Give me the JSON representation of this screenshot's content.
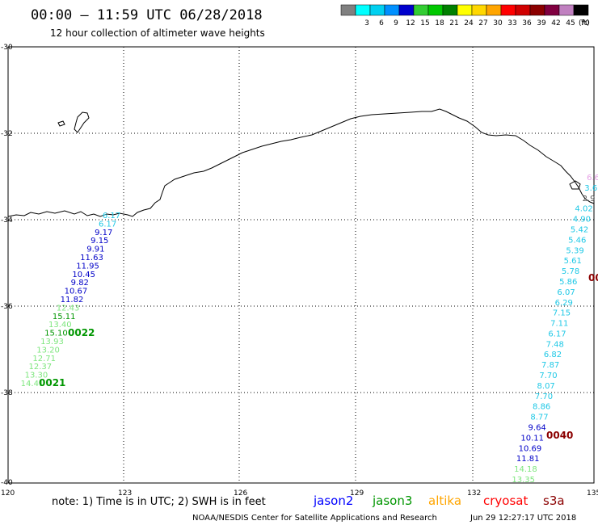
{
  "header": {
    "title": "00:00 – 11:59 UTC 06/28/2018",
    "subtitle": "12 hour collection of altimeter wave heights"
  },
  "color_scale": {
    "unit": "(ft)",
    "bins": [
      {
        "label": "",
        "color": "#808080"
      },
      {
        "label": "3",
        "color": "#00ffff"
      },
      {
        "label": "6",
        "color": "#00d0f0"
      },
      {
        "label": "9",
        "color": "#0090ff"
      },
      {
        "label": "12",
        "color": "#0000cd"
      },
      {
        "label": "15",
        "color": "#32cd32"
      },
      {
        "label": "18",
        "color": "#00c800"
      },
      {
        "label": "21",
        "color": "#008000"
      },
      {
        "label": "24",
        "color": "#ffff00"
      },
      {
        "label": "27",
        "color": "#ffd700"
      },
      {
        "label": "30",
        "color": "#ffa500"
      },
      {
        "label": "33",
        "color": "#ff0000"
      },
      {
        "label": "36",
        "color": "#d00000"
      },
      {
        "label": "39",
        "color": "#8b0000"
      },
      {
        "label": "42",
        "color": "#800040"
      },
      {
        "label": "45",
        "color": "#c080c0"
      },
      {
        "label": "70",
        "color": "#000000"
      }
    ]
  },
  "axes": {
    "lon_ticks": [
      "120",
      "123",
      "126",
      "129",
      "132",
      "135"
    ],
    "lat_ticks": [
      "-30",
      "-32",
      "-34",
      "-36",
      "-38",
      "-40"
    ]
  },
  "tracks": {
    "west": [
      {
        "text": "6.17",
        "color": "#1ec8e6"
      },
      {
        "text": "6.17",
        "color": "#1ec8e6"
      },
      {
        "text": "9.17",
        "color": "#0000c8"
      },
      {
        "text": "9.15",
        "color": "#0000c8"
      },
      {
        "text": "9.91",
        "color": "#0000c8"
      },
      {
        "text": "11.63",
        "color": "#0000c8"
      },
      {
        "text": "11.95",
        "color": "#0000c8"
      },
      {
        "text": "10.45",
        "color": "#0000c8"
      },
      {
        "text": "9.82",
        "color": "#0000c8"
      },
      {
        "text": "10.67",
        "color": "#0000c8"
      },
      {
        "text": "11.82",
        "color": "#0000c8"
      },
      {
        "text": "12.43",
        "color": "#7ee67e"
      },
      {
        "text": "15.11",
        "color": "#009600"
      },
      {
        "text": "13.40",
        "color": "#7ee67e"
      },
      {
        "text": "15.10",
        "color": "#009600"
      },
      {
        "text": "13.93",
        "color": "#7ee67e"
      },
      {
        "text": "13.20",
        "color": "#7ee67e"
      },
      {
        "text": "12.71",
        "color": "#7ee67e"
      },
      {
        "text": "12.37",
        "color": "#7ee67e"
      },
      {
        "text": "13.30",
        "color": "#7ee67e"
      },
      {
        "text": "14.41",
        "color": "#7ee67e"
      }
    ],
    "east": [
      {
        "text": "6.6",
        "color": "#e6a0e6"
      },
      {
        "text": "3.6",
        "color": "#1ec8e6"
      },
      {
        "text": "2.9",
        "color": "#555555"
      },
      {
        "text": "4.02",
        "color": "#1ec8e6"
      },
      {
        "text": "4.90",
        "color": "#1ec8e6"
      },
      {
        "text": "5.42",
        "color": "#1ec8e6"
      },
      {
        "text": "5.46",
        "color": "#1ec8e6"
      },
      {
        "text": "5.39",
        "color": "#1ec8e6"
      },
      {
        "text": "5.61",
        "color": "#1ec8e6"
      },
      {
        "text": "5.78",
        "color": "#1ec8e6"
      },
      {
        "text": "5.86",
        "color": "#1ec8e6"
      },
      {
        "text": "6.07",
        "color": "#1ec8e6"
      },
      {
        "text": "6.29",
        "color": "#1ec8e6"
      },
      {
        "text": "7.15",
        "color": "#1ec8e6"
      },
      {
        "text": "7.11",
        "color": "#1ec8e6"
      },
      {
        "text": "6.17",
        "color": "#1ec8e6"
      },
      {
        "text": "7.48",
        "color": "#1ec8e6"
      },
      {
        "text": "6.82",
        "color": "#1ec8e6"
      },
      {
        "text": "7.87",
        "color": "#1ec8e6"
      },
      {
        "text": "7.70",
        "color": "#1ec8e6"
      },
      {
        "text": "8.07",
        "color": "#1ec8e6"
      },
      {
        "text": "7.70",
        "color": "#1ec8e6"
      },
      {
        "text": "8.86",
        "color": "#1ec8e6"
      },
      {
        "text": "8.77",
        "color": "#1ec8e6"
      },
      {
        "text": "9.64",
        "color": "#0000c8"
      },
      {
        "text": "10.11",
        "color": "#0000c8"
      },
      {
        "text": "10.69",
        "color": "#0000c8"
      },
      {
        "text": "11.81",
        "color": "#0000c8"
      },
      {
        "text": "14.18",
        "color": "#7ee67e"
      },
      {
        "text": "13.35",
        "color": "#7ee67e"
      }
    ]
  },
  "pass_labels": {
    "p0022": {
      "text": "0022",
      "color": "#009600"
    },
    "p0021": {
      "text": "0021",
      "color": "#009600"
    },
    "p0040": {
      "text": "0040",
      "color": "#8b0000"
    },
    "p00": {
      "text": "00",
      "color": "#8b0000"
    }
  },
  "legend": {
    "note": "note: 1) Time is in UTC; 2) SWH is in feet",
    "missions": [
      {
        "name": "jason2",
        "color": "#0000ff"
      },
      {
        "name": "jason3",
        "color": "#009600"
      },
      {
        "name": "altika",
        "color": "#ffa500"
      },
      {
        "name": "cryosat",
        "color": "#ff0000"
      },
      {
        "name": "s3a",
        "color": "#8b0000"
      }
    ]
  },
  "footer": {
    "credit": "NOAA/NESDIS Center for Satellite Applications and Research",
    "timestamp": "Jun 29 12:27:17 UTC 2018"
  }
}
